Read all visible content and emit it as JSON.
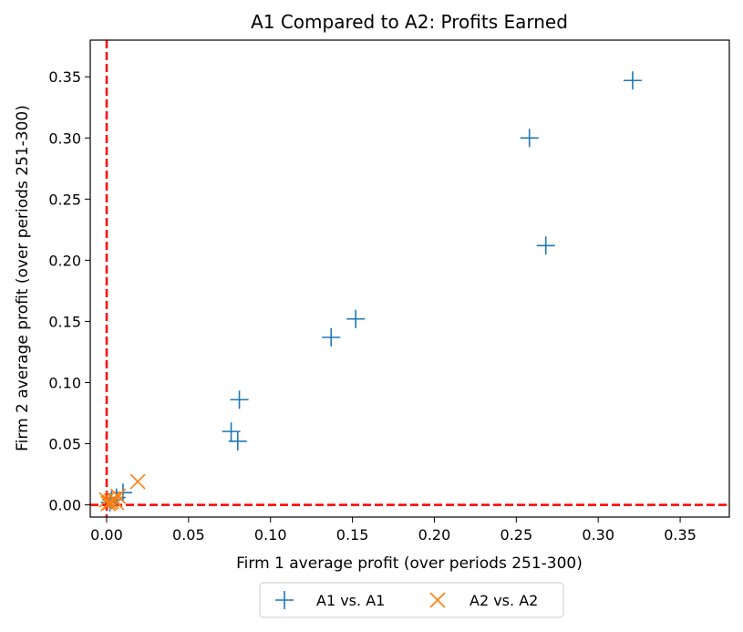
{
  "chart_data": {
    "type": "scatter",
    "title": "A1 Compared to A2: Profits Earned",
    "xlabel": "Firm 1 average profit (over periods 251-300)",
    "ylabel": "Firm 2 average profit (over periods 251-300)",
    "xlim": [
      -0.01,
      0.38
    ],
    "ylim": [
      -0.01,
      0.38
    ],
    "xticks": [
      "0.00",
      "0.05",
      "0.10",
      "0.15",
      "0.20",
      "0.25",
      "0.30",
      "0.35"
    ],
    "yticks": [
      "0.00",
      "0.05",
      "0.10",
      "0.15",
      "0.20",
      "0.25",
      "0.30",
      "0.35"
    ],
    "reference_lines": [
      {
        "orientation": "vertical",
        "value": 0,
        "style": "dashed",
        "color": "#ff0000"
      },
      {
        "orientation": "horizontal",
        "value": 0,
        "style": "dashed",
        "color": "#ff0000"
      }
    ],
    "legend_position": "below-center",
    "grid": false,
    "series": [
      {
        "name": "A1 vs. A1",
        "marker": "plus",
        "color": "#1f77b4",
        "points": [
          [
            0.321,
            0.347
          ],
          [
            0.258,
            0.3
          ],
          [
            0.268,
            0.212
          ],
          [
            0.152,
            0.152
          ],
          [
            0.137,
            0.137
          ],
          [
            0.081,
            0.086
          ],
          [
            0.076,
            0.06
          ],
          [
            0.08,
            0.052
          ],
          [
            0.01,
            0.01
          ],
          [
            0.006,
            0.006
          ],
          [
            0.003,
            0.004
          ],
          [
            0.002,
            0.002
          ]
        ]
      },
      {
        "name": "A2 vs. A2",
        "marker": "x",
        "color": "#ff7f0e",
        "points": [
          [
            0.019,
            0.019
          ],
          [
            0.007,
            0.007
          ],
          [
            0.005,
            0.004
          ],
          [
            0.004,
            0.005
          ],
          [
            0.003,
            0.003
          ],
          [
            0.002,
            0.002
          ],
          [
            0.001,
            0.001
          ],
          [
            0.0,
            0.004
          ],
          [
            0.006,
            0.002
          ]
        ]
      }
    ]
  }
}
